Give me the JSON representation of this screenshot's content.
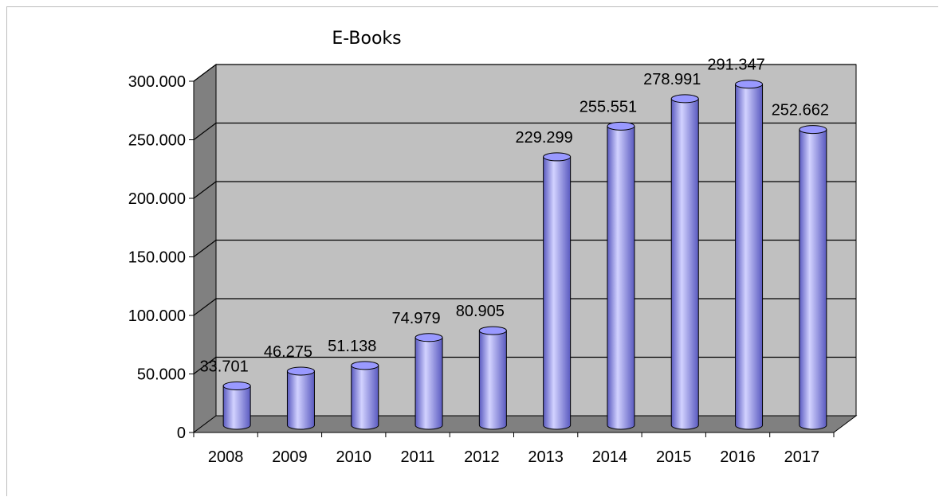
{
  "chart_data": {
    "type": "bar",
    "style": "3d-cylinder",
    "title": "E-Books",
    "xlabel": "",
    "ylabel": "",
    "categories": [
      "2008",
      "2009",
      "2010",
      "2011",
      "2012",
      "2013",
      "2014",
      "2015",
      "2016",
      "2017"
    ],
    "values": [
      33701,
      46275,
      51138,
      74979,
      80905,
      229299,
      255551,
      278991,
      291347,
      252662
    ],
    "data_labels": [
      "33.701",
      "46.275",
      "51.138",
      "74.979",
      "80.905",
      "229.299",
      "255.551",
      "278.991",
      "291.347",
      "252.662"
    ],
    "ylim": [
      0,
      300000
    ],
    "yticks": [
      0,
      50000,
      100000,
      150000,
      200000,
      250000,
      300000
    ],
    "ytick_labels": [
      "0",
      "50.000",
      "100.000",
      "150.000",
      "200.000",
      "250.000",
      "300.000"
    ],
    "grid": true,
    "legend": "none",
    "colors": {
      "bar": "#9999ff",
      "bar_dark": "#5a5ac0",
      "bar_light": "#d2d2ff",
      "plot_back": "#c0c0c0",
      "plot_side": "#808080",
      "plot_floor": "#808080",
      "gridline": "#000000"
    }
  }
}
